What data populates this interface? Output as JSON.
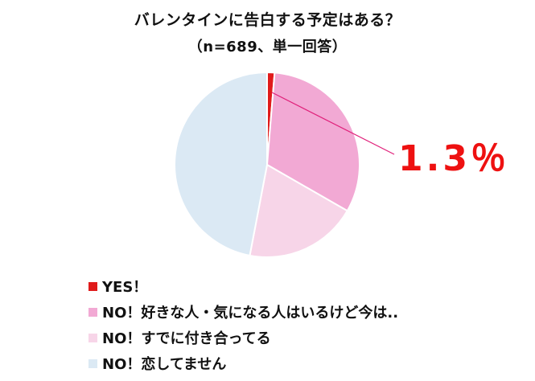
{
  "chart_data": {
    "type": "pie",
    "title": "バレンタインに告白する予定はある？",
    "subtitle": "（n=689、単一回答）",
    "slices": [
      {
        "label": "YES！",
        "value": 1.3,
        "color": "#e01b1b"
      },
      {
        "label": "NO！好きな人・気になる人はいるけど今は..",
        "value": 32.0,
        "color": "#f2a9d4"
      },
      {
        "label": "NO！すでに付き合ってる",
        "value": 19.7,
        "color": "#f7d5e8"
      },
      {
        "label": "NO！恋してません",
        "value": 47.0,
        "color": "#dbe9f4"
      }
    ],
    "callout": {
      "text": "1.3％",
      "color": "#ee1111",
      "line_color": "#e0207a"
    },
    "legend_position": "bottom-left"
  }
}
